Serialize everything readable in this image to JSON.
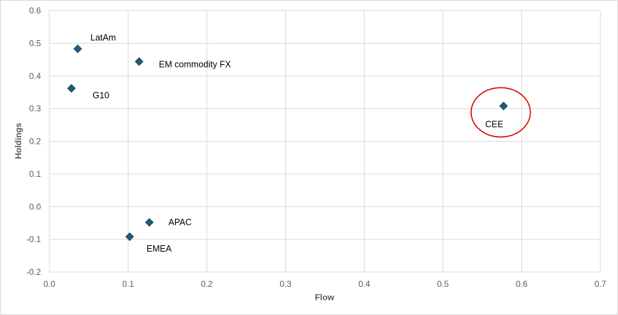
{
  "chart_data": {
    "type": "scatter",
    "xlabel": "Flow",
    "ylabel": "Holdings",
    "xlim": [
      0.0,
      0.7
    ],
    "ylim": [
      -0.2,
      0.6
    ],
    "xticks": [
      "0.0",
      "0.1",
      "0.2",
      "0.3",
      "0.4",
      "0.5",
      "0.6",
      "0.7"
    ],
    "yticks": [
      "-0.2",
      "-0.1",
      "0.0",
      "0.1",
      "0.2",
      "0.3",
      "0.4",
      "0.5",
      "0.6"
    ],
    "grid": true,
    "marker": "diamond",
    "marker_color": "#1f5c7a",
    "points": [
      {
        "label": "LatAm",
        "x": 0.036,
        "y": 0.483
      },
      {
        "label": "EM commodity FX",
        "x": 0.114,
        "y": 0.444
      },
      {
        "label": "G10",
        "x": 0.028,
        "y": 0.362
      },
      {
        "label": "CEE",
        "x": 0.577,
        "y": 0.308
      },
      {
        "label": "APAC",
        "x": 0.127,
        "y": -0.048
      },
      {
        "label": "EMEA",
        "x": 0.102,
        "y": -0.092
      }
    ],
    "highlight": {
      "label": "CEE",
      "shape": "circle",
      "color": "#e00000"
    }
  }
}
